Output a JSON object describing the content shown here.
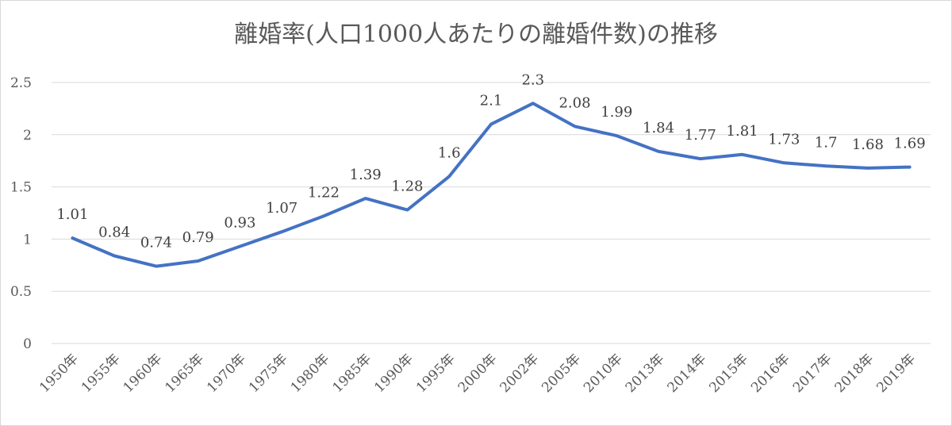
{
  "chart_data": {
    "type": "line",
    "title": "離婚率(人口1000人あたりの離婚件数)の推移",
    "categories": [
      "1950年",
      "1955年",
      "1960年",
      "1965年",
      "1970年",
      "1975年",
      "1980年",
      "1985年",
      "1990年",
      "1995年",
      "2000年",
      "2002年",
      "2005年",
      "2010年",
      "2013年",
      "2014年",
      "2015年",
      "2016年",
      "2017年",
      "2018年",
      "2019年"
    ],
    "series": [
      {
        "values": [
          1.01,
          0.84,
          0.74,
          0.79,
          0.93,
          1.07,
          1.22,
          1.39,
          1.28,
          1.6,
          2.1,
          2.3,
          2.08,
          1.99,
          1.84,
          1.77,
          1.81,
          1.73,
          1.7,
          1.68,
          1.69
        ],
        "color": "#4472c4"
      }
    ],
    "ylim": [
      0,
      2.5
    ],
    "yticks": [
      "0",
      "0.5",
      "1",
      "1.5",
      "2",
      "2.5"
    ],
    "data_labels": [
      "1.01",
      "0.84",
      "0.74",
      "0.79",
      "0.93",
      "1.07",
      "1.22",
      "1.39",
      "1.28",
      "1.6",
      "2.1",
      "2.3",
      "2.08",
      "1.99",
      "1.84",
      "1.77",
      "1.81",
      "1.73",
      "1.7",
      "1.68",
      "1.69"
    ],
    "grid": true,
    "legend": "none",
    "xlabel": "",
    "ylabel": ""
  }
}
